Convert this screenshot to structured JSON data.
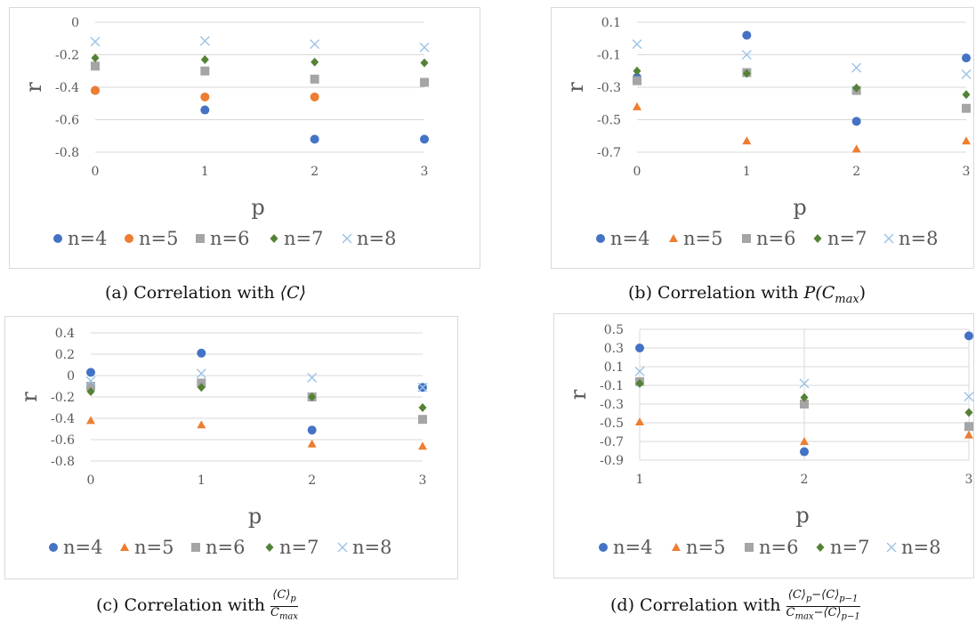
{
  "chart_data": [
    {
      "id": "a",
      "type": "scatter",
      "caption_prefix": "(a) Correlation with",
      "caption_math": "⟨C⟩",
      "xlabel": "p",
      "ylabel": "r",
      "x_ticks": [
        "0",
        "1",
        "2",
        "3"
      ],
      "y_ticks": [
        "0",
        "-0.2",
        "-0.4",
        "-0.6",
        "-0.8"
      ],
      "y_tick_values": [
        0,
        -0.2,
        -0.4,
        -0.6,
        -0.8
      ],
      "ylim": [
        -0.8,
        0
      ],
      "xlim": [
        0,
        3
      ],
      "grid": "horizontal",
      "legend_position": "bottom",
      "series": [
        {
          "name": "n=4",
          "marker": "circle",
          "color": "#4472C4",
          "x": [
            0,
            1,
            2,
            3
          ],
          "y": [
            -0.42,
            -0.54,
            -0.72,
            -0.72
          ]
        },
        {
          "name": "n=5",
          "marker": "circle",
          "color": "#ED7D31",
          "x": [
            0,
            1,
            2,
            3
          ],
          "y": [
            -0.42,
            -0.46,
            -0.46,
            -0.37
          ]
        },
        {
          "name": "n=6",
          "marker": "square",
          "color": "#A5A5A5",
          "x": [
            0,
            1,
            2,
            3
          ],
          "y": [
            -0.27,
            -0.3,
            -0.35,
            -0.37
          ]
        },
        {
          "name": "n=7",
          "marker": "diamond",
          "color": "#548235",
          "x": [
            0,
            1,
            2,
            3
          ],
          "y": [
            -0.22,
            -0.23,
            -0.245,
            -0.25
          ]
        },
        {
          "name": "n=8",
          "marker": "x",
          "color": "#9DC3E6",
          "x": [
            0,
            1,
            2,
            3
          ],
          "y": [
            -0.12,
            -0.115,
            -0.135,
            -0.155
          ]
        }
      ]
    },
    {
      "id": "b",
      "type": "scatter",
      "caption_prefix": "(b) Correlation with",
      "caption_math": "P(C",
      "caption_sub": "max",
      "caption_after": ")",
      "xlabel": "p",
      "ylabel": "r",
      "x_ticks": [
        "0",
        "1",
        "2",
        "3"
      ],
      "y_ticks": [
        "0.1",
        "-0.1",
        "-0.3",
        "-0.5",
        "-0.7"
      ],
      "y_tick_values": [
        0.1,
        -0.1,
        -0.3,
        -0.5,
        -0.7
      ],
      "ylim": [
        -0.7,
        0.1
      ],
      "xlim": [
        0,
        3
      ],
      "grid": "horizontal",
      "legend_position": "bottom",
      "series": [
        {
          "name": "n=4",
          "marker": "circle",
          "color": "#4472C4",
          "x": [
            0,
            1,
            2,
            3
          ],
          "y": [
            -0.24,
            0.02,
            -0.51,
            -0.12
          ]
        },
        {
          "name": "n=5",
          "marker": "triangle",
          "color": "#ED7D31",
          "x": [
            0,
            1,
            2,
            3
          ],
          "y": [
            -0.42,
            -0.63,
            -0.68,
            -0.63
          ]
        },
        {
          "name": "n=6",
          "marker": "square",
          "color": "#A5A5A5",
          "x": [
            0,
            1,
            2,
            3
          ],
          "y": [
            -0.26,
            -0.21,
            -0.32,
            -0.43
          ]
        },
        {
          "name": "n=7",
          "marker": "diamond",
          "color": "#548235",
          "x": [
            0,
            1,
            2,
            3
          ],
          "y": [
            -0.2,
            -0.215,
            -0.305,
            -0.345
          ]
        },
        {
          "name": "n=8",
          "marker": "x",
          "color": "#9DC3E6",
          "x": [
            0,
            1,
            2,
            3
          ],
          "y": [
            -0.035,
            -0.1,
            -0.18,
            -0.22
          ]
        }
      ]
    },
    {
      "id": "c",
      "type": "scatter",
      "caption_prefix": "(c) Correlation with",
      "caption_frac_num": "⟨C⟩",
      "caption_frac_num_sub": "p",
      "caption_frac_den": "C",
      "caption_frac_den_sub": "max",
      "xlabel": "p",
      "ylabel": "r",
      "x_ticks": [
        "0",
        "1",
        "2",
        "3"
      ],
      "y_ticks": [
        "0.4",
        "0.2",
        "0",
        "-0.2",
        "-0.4",
        "-0.6",
        "-0.8"
      ],
      "y_tick_values": [
        0.4,
        0.2,
        0,
        -0.2,
        -0.4,
        -0.6,
        -0.8
      ],
      "ylim": [
        -0.8,
        0.4
      ],
      "xlim": [
        0,
        3
      ],
      "grid": "horizontal",
      "legend_position": "bottom",
      "series": [
        {
          "name": "n=4",
          "marker": "circle",
          "color": "#4472C4",
          "x": [
            0,
            1,
            2,
            3
          ],
          "y": [
            0.03,
            0.21,
            -0.51,
            -0.11
          ]
        },
        {
          "name": "n=5",
          "marker": "triangle",
          "color": "#ED7D31",
          "x": [
            0,
            1,
            2,
            3
          ],
          "y": [
            -0.42,
            -0.46,
            -0.64,
            -0.66
          ]
        },
        {
          "name": "n=6",
          "marker": "square",
          "color": "#A5A5A5",
          "x": [
            0,
            1,
            2,
            3
          ],
          "y": [
            -0.1,
            -0.07,
            -0.2,
            -0.41
          ]
        },
        {
          "name": "n=7",
          "marker": "diamond",
          "color": "#548235",
          "x": [
            0,
            1,
            2,
            3
          ],
          "y": [
            -0.15,
            -0.11,
            -0.2,
            -0.3
          ]
        },
        {
          "name": "n=8",
          "marker": "x",
          "color": "#9DC3E6",
          "x": [
            0,
            1,
            2,
            3
          ],
          "y": [
            -0.05,
            0.02,
            -0.02,
            -0.11
          ]
        }
      ]
    },
    {
      "id": "d",
      "type": "scatter",
      "caption_prefix": "(d) Correlation with",
      "caption_frac_num": "⟨C⟩",
      "caption_frac_num_sub": "p",
      "caption_frac_num_mid": "−⟨C⟩",
      "caption_frac_num_sub2": "p−1",
      "caption_frac_den": "C",
      "caption_frac_den_sub": "max",
      "caption_frac_den_mid": "−⟨C⟩",
      "caption_frac_den_sub2": "p−1",
      "xlabel": "p",
      "ylabel": "r",
      "x_ticks": [
        "1",
        "2",
        "3"
      ],
      "y_ticks": [
        "0.5",
        "0.3",
        "0.1",
        "-0.1",
        "-0.3",
        "-0.5",
        "-0.7",
        "-0.9"
      ],
      "y_tick_values": [
        0.5,
        0.3,
        0.1,
        -0.1,
        -0.3,
        -0.5,
        -0.7,
        -0.9
      ],
      "ylim": [
        -0.9,
        0.5
      ],
      "xlim": [
        1,
        3
      ],
      "grid": "both",
      "legend_position": "bottom",
      "series": [
        {
          "name": "n=4",
          "marker": "circle",
          "color": "#4472C4",
          "x": [
            1,
            2,
            3
          ],
          "y": [
            0.3,
            -0.81,
            0.43
          ]
        },
        {
          "name": "n=5",
          "marker": "triangle",
          "color": "#ED7D31",
          "x": [
            1,
            2,
            3
          ],
          "y": [
            -0.49,
            -0.7,
            -0.63
          ]
        },
        {
          "name": "n=6",
          "marker": "square",
          "color": "#A5A5A5",
          "x": [
            1,
            2,
            3
          ],
          "y": [
            -0.06,
            -0.3,
            -0.54
          ]
        },
        {
          "name": "n=7",
          "marker": "diamond",
          "color": "#548235",
          "x": [
            1,
            2,
            3
          ],
          "y": [
            -0.08,
            -0.23,
            -0.39
          ]
        },
        {
          "name": "n=8",
          "marker": "x",
          "color": "#9DC3E6",
          "x": [
            1,
            2,
            3
          ],
          "y": [
            0.05,
            -0.08,
            -0.22
          ]
        }
      ]
    }
  ]
}
